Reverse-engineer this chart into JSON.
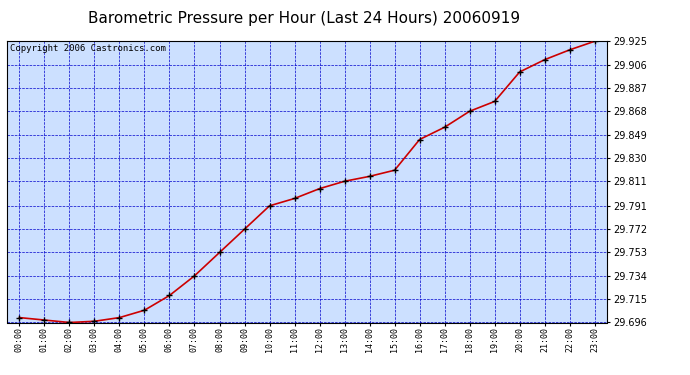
{
  "title": "Barometric Pressure per Hour (Last 24 Hours) 20060919",
  "copyright": "Copyright 2006 Castronics.com",
  "hours": [
    "00:00",
    "01:00",
    "02:00",
    "03:00",
    "04:00",
    "05:00",
    "06:00",
    "07:00",
    "08:00",
    "09:00",
    "10:00",
    "11:00",
    "12:00",
    "13:00",
    "14:00",
    "15:00",
    "16:00",
    "17:00",
    "18:00",
    "19:00",
    "20:00",
    "21:00",
    "22:00",
    "23:00"
  ],
  "values": [
    29.7,
    29.698,
    29.696,
    29.697,
    29.7,
    29.706,
    29.718,
    29.734,
    29.753,
    29.772,
    29.791,
    29.797,
    29.805,
    29.811,
    29.815,
    29.82,
    29.845,
    29.855,
    29.868,
    29.876,
    29.9,
    29.91,
    29.918,
    29.925
  ],
  "ylim": [
    29.696,
    29.925
  ],
  "yticks": [
    29.696,
    29.715,
    29.734,
    29.753,
    29.772,
    29.791,
    29.811,
    29.83,
    29.849,
    29.868,
    29.887,
    29.906,
    29.925
  ],
  "line_color": "#cc0000",
  "marker_color": "#000000",
  "bg_color": "#cce0ff",
  "grid_color": "#0000cc",
  "title_color": "#000000",
  "title_fontsize": 11,
  "copyright_fontsize": 6.5
}
